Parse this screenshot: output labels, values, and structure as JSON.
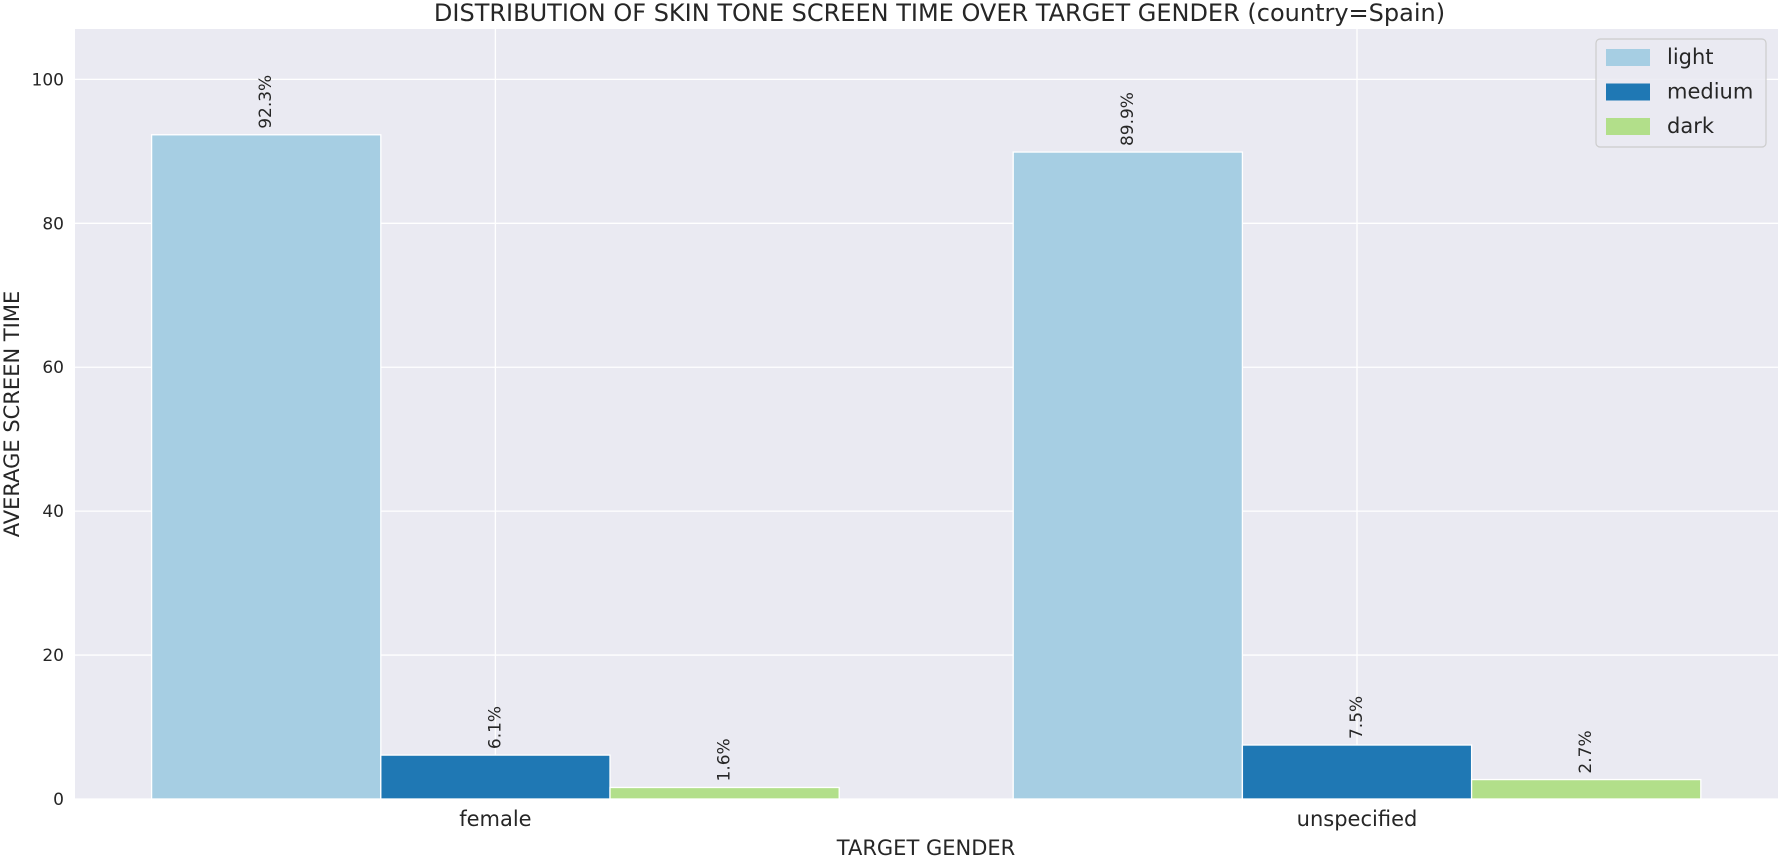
{
  "chart_data": {
    "type": "bar",
    "title": "DISTRIBUTION OF SKIN TONE SCREEN TIME OVER TARGET GENDER (country=Spain)",
    "xlabel": "TARGET GENDER",
    "ylabel": "AVERAGE SCREEN TIME",
    "categories": [
      "female",
      "unspecified"
    ],
    "series": [
      {
        "name": "light",
        "color": "#a6cee3",
        "values": [
          92.3,
          89.9
        ],
        "labels": [
          "92.3%",
          "89.9%"
        ]
      },
      {
        "name": "medium",
        "color": "#1f78b4",
        "values": [
          6.1,
          7.5
        ],
        "labels": [
          "6.1%",
          "7.5%"
        ]
      },
      {
        "name": "dark",
        "color": "#b2df8a",
        "values": [
          1.6,
          2.7
        ],
        "labels": [
          "1.6%",
          "2.7%"
        ]
      }
    ],
    "ylim": [
      0,
      107
    ],
    "yticks": [
      0,
      20,
      40,
      60,
      80,
      100
    ],
    "grid": true,
    "legend_position": "top-right",
    "background_color": "#eaeaf2"
  }
}
